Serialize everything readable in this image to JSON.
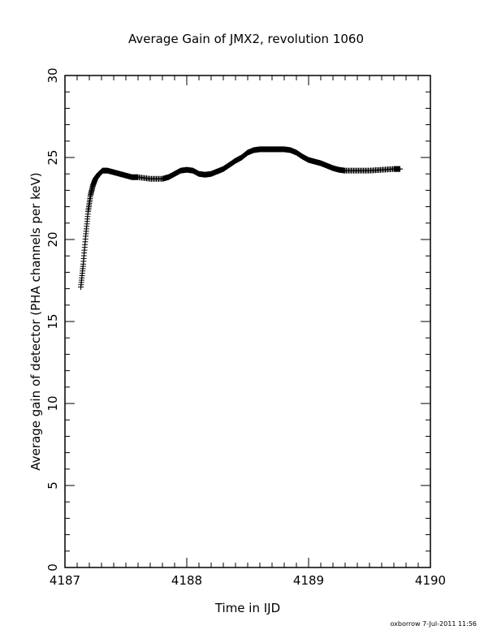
{
  "chart_data": {
    "type": "scatter",
    "title": "Average Gain of JMX2, revolution 1060",
    "xlabel": "Time in IJD",
    "ylabel": "Average gain of detector (PHA channels per keV)",
    "xlim": [
      4187,
      4190
    ],
    "ylim": [
      0,
      30
    ],
    "xticks": [
      "4187",
      "4188",
      "4189",
      "4190"
    ],
    "yticks": [
      "0",
      "5",
      "10",
      "15",
      "20",
      "25",
      "30"
    ],
    "grid": false,
    "marker": "plus",
    "footer": "oxborrow  7-Jul-2011 11:56",
    "series": [
      {
        "x": [
          4187.13,
          4187.15,
          4187.17,
          4187.19,
          4187.21,
          4187.23,
          4187.25,
          4187.28,
          4187.31,
          4187.35,
          4187.4,
          4187.45,
          4187.5,
          4187.55,
          4187.6,
          4187.7,
          4187.8,
          4187.85,
          4187.9,
          4187.95,
          4188.0,
          4188.05,
          4188.1,
          4188.15,
          4188.2,
          4188.25,
          4188.3,
          4188.35,
          4188.4,
          4188.45,
          4188.5,
          4188.55,
          4188.6,
          4188.65,
          4188.7,
          4188.75,
          4188.8,
          4188.85,
          4188.9,
          4188.95,
          4189.0,
          4189.05,
          4189.1,
          4189.15,
          4189.2,
          4189.25,
          4189.3,
          4189.4,
          4189.5,
          4189.6,
          4189.7,
          4189.75
        ],
        "y": [
          17.1,
          18.5,
          20.2,
          21.7,
          22.7,
          23.3,
          23.7,
          24.0,
          24.2,
          24.2,
          24.1,
          24.0,
          23.9,
          23.8,
          23.8,
          23.7,
          23.7,
          23.8,
          24.0,
          24.2,
          24.25,
          24.2,
          24.0,
          23.95,
          24.0,
          24.15,
          24.3,
          24.55,
          24.8,
          25.0,
          25.3,
          25.45,
          25.5,
          25.5,
          25.5,
          25.5,
          25.5,
          25.45,
          25.3,
          25.05,
          24.85,
          24.75,
          24.65,
          24.5,
          24.35,
          24.25,
          24.2,
          24.2,
          24.2,
          24.25,
          24.3,
          24.3
        ]
      }
    ]
  }
}
